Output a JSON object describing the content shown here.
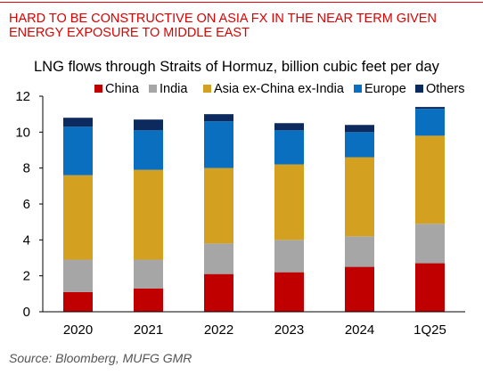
{
  "headline": {
    "line1": "HARD TO BE CONSTRUCTIVE ON ASIA FX IN THE NEAR TERM GIVEN",
    "line2": "ENERGY EXPOSURE TO MIDDLE EAST"
  },
  "chart_data": {
    "type": "bar",
    "stacked": true,
    "title": "LNG flows through Straits of Hormuz, billion cubic feet per day",
    "categories": [
      "2020",
      "2021",
      "2022",
      "2023",
      "2024",
      "1Q25"
    ],
    "ylim": [
      0,
      12
    ],
    "yticks": [
      0,
      2,
      4,
      6,
      8,
      10,
      12
    ],
    "grid": false,
    "legend_position": "top",
    "series": [
      {
        "name": "China",
        "color": "#c00000",
        "values": [
          1.1,
          1.3,
          2.1,
          2.2,
          2.5,
          2.7
        ]
      },
      {
        "name": "India",
        "color": "#a6a6a6",
        "values": [
          1.8,
          1.6,
          1.7,
          1.8,
          1.7,
          2.2
        ]
      },
      {
        "name": "Asia ex-China ex-India",
        "color": "#d4a020",
        "values": [
          4.7,
          5.0,
          4.2,
          4.2,
          4.4,
          4.9
        ]
      },
      {
        "name": "Europe",
        "color": "#0b6fc0",
        "values": [
          2.7,
          2.2,
          2.6,
          1.9,
          1.4,
          1.5
        ]
      },
      {
        "name": "Others",
        "color": "#0d2a5e",
        "values": [
          0.5,
          0.6,
          0.4,
          0.4,
          0.4,
          0.1
        ]
      }
    ]
  },
  "source": "Source: Bloomberg, MUFG GMR"
}
